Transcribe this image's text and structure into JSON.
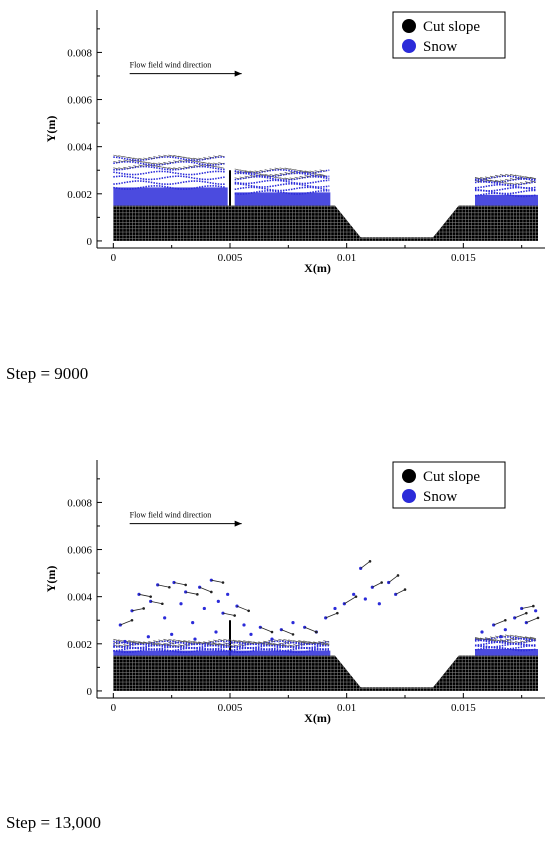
{
  "charts": [
    {
      "type": "scatter",
      "caption": "Step = 9000",
      "xlabel": "X(m)",
      "ylabel": "Y(m)",
      "xlim": [
        -0.0007,
        0.0185
      ],
      "ylim": [
        -0.0003,
        0.0098
      ],
      "x_ticks": [
        0,
        0.005,
        0.01,
        0.015
      ],
      "x_tick_labels": [
        "0",
        "0.005",
        "0.01",
        "0.015"
      ],
      "y_ticks": [
        0,
        0.002,
        0.004,
        0.006,
        0.008
      ],
      "y_tick_labels": [
        "0",
        "0.002",
        "0.004",
        "0.006",
        "0.008"
      ],
      "annotation": "Flow field wind direction",
      "legend": [
        {
          "label": "Cut slope",
          "color": "#000000"
        },
        {
          "label": "Snow",
          "color": "#2b2bd9"
        }
      ],
      "legend_position": "top-right",
      "slope_profile": {
        "x": [
          0,
          0.0095,
          0.0106,
          0.0137,
          0.0148,
          0.0182
        ],
        "y": [
          0.0015,
          0.0015,
          0.00015,
          0.00015,
          0.0015,
          0.0015
        ]
      },
      "wall": {
        "x": 0.005,
        "y0": 0.0015,
        "y1": 0.003
      },
      "snow_layers": [
        {
          "x0": 0.0,
          "x1": 0.0049,
          "base": 0.0015,
          "top": 0.0037
        },
        {
          "x0": 0.0052,
          "x1": 0.0093,
          "base": 0.0015,
          "top": 0.0031
        },
        {
          "x0": 0.0155,
          "x1": 0.0182,
          "base": 0.0015,
          "top": 0.0028
        }
      ],
      "snow_particles": [],
      "vectors": []
    },
    {
      "type": "scatter",
      "caption": "Step = 13,000",
      "xlabel": "X(m)",
      "ylabel": "Y(m)",
      "xlim": [
        -0.0007,
        0.0185
      ],
      "ylim": [
        -0.0003,
        0.0098
      ],
      "x_ticks": [
        0,
        0.005,
        0.01,
        0.015
      ],
      "x_tick_labels": [
        "0",
        "0.005",
        "0.01",
        "0.015"
      ],
      "y_ticks": [
        0,
        0.002,
        0.004,
        0.006,
        0.008
      ],
      "y_tick_labels": [
        "0",
        "0.002",
        "0.004",
        "0.006",
        "0.008"
      ],
      "annotation": "Flow field wind direction",
      "legend": [
        {
          "label": "Cut slope",
          "color": "#000000"
        },
        {
          "label": "Snow",
          "color": "#2b2bd9"
        }
      ],
      "legend_position": "top-right",
      "slope_profile": {
        "x": [
          0,
          0.0095,
          0.0106,
          0.0137,
          0.0148,
          0.0182
        ],
        "y": [
          0.0015,
          0.0015,
          0.00015,
          0.00015,
          0.0015,
          0.0015
        ]
      },
      "wall": {
        "x": 0.005,
        "y0": 0.0015,
        "y1": 0.003
      },
      "snow_layers": [
        {
          "x0": 0.0,
          "x1": 0.0093,
          "base": 0.0015,
          "top": 0.0021
        },
        {
          "x0": 0.0155,
          "x1": 0.0182,
          "base": 0.0015,
          "top": 0.0023
        }
      ],
      "snow_particles": [
        [
          0.0003,
          0.0028
        ],
        [
          0.0008,
          0.0034
        ],
        [
          0.0011,
          0.0041
        ],
        [
          0.0016,
          0.0038
        ],
        [
          0.0019,
          0.0045
        ],
        [
          0.0022,
          0.0031
        ],
        [
          0.0026,
          0.0046
        ],
        [
          0.0029,
          0.0037
        ],
        [
          0.0031,
          0.0042
        ],
        [
          0.0034,
          0.0029
        ],
        [
          0.0037,
          0.0044
        ],
        [
          0.0039,
          0.0035
        ],
        [
          0.0042,
          0.0047
        ],
        [
          0.0045,
          0.0038
        ],
        [
          0.0047,
          0.0033
        ],
        [
          0.0049,
          0.0041
        ],
        [
          0.0053,
          0.0036
        ],
        [
          0.0056,
          0.0028
        ],
        [
          0.0059,
          0.0024
        ],
        [
          0.0063,
          0.0027
        ],
        [
          0.0068,
          0.0022
        ],
        [
          0.0072,
          0.0026
        ],
        [
          0.0077,
          0.0029
        ],
        [
          0.0082,
          0.0027
        ],
        [
          0.0087,
          0.0025
        ],
        [
          0.0091,
          0.0031
        ],
        [
          0.0095,
          0.0035
        ],
        [
          0.0099,
          0.0037
        ],
        [
          0.0103,
          0.0041
        ],
        [
          0.0106,
          0.0052
        ],
        [
          0.0108,
          0.0039
        ],
        [
          0.0111,
          0.0044
        ],
        [
          0.0114,
          0.0037
        ],
        [
          0.0118,
          0.0046
        ],
        [
          0.0121,
          0.0041
        ],
        [
          0.0025,
          0.0024
        ],
        [
          0.0035,
          0.0022
        ],
        [
          0.0015,
          0.0023
        ],
        [
          0.0005,
          0.0021
        ],
        [
          0.0044,
          0.0025
        ],
        [
          0.0158,
          0.0025
        ],
        [
          0.0163,
          0.0028
        ],
        [
          0.0168,
          0.0026
        ],
        [
          0.0172,
          0.0031
        ],
        [
          0.0177,
          0.0029
        ],
        [
          0.0181,
          0.0034
        ],
        [
          0.0175,
          0.0035
        ],
        [
          0.0166,
          0.0023
        ]
      ],
      "vectors": [
        [
          0.0003,
          0.0028,
          0.0008,
          0.003
        ],
        [
          0.0008,
          0.0034,
          0.0013,
          0.0035
        ],
        [
          0.0011,
          0.0041,
          0.0016,
          0.004
        ],
        [
          0.0016,
          0.0038,
          0.0021,
          0.0037
        ],
        [
          0.0019,
          0.0045,
          0.0024,
          0.0044
        ],
        [
          0.0026,
          0.0046,
          0.0031,
          0.0045
        ],
        [
          0.0031,
          0.0042,
          0.0036,
          0.0041
        ],
        [
          0.0037,
          0.0044,
          0.0042,
          0.0042
        ],
        [
          0.0042,
          0.0047,
          0.0047,
          0.0046
        ],
        [
          0.0047,
          0.0033,
          0.0052,
          0.0032
        ],
        [
          0.0053,
          0.0036,
          0.0058,
          0.0034
        ],
        [
          0.0063,
          0.0027,
          0.0068,
          0.0025
        ],
        [
          0.0072,
          0.0026,
          0.0077,
          0.0024
        ],
        [
          0.0082,
          0.0027,
          0.0087,
          0.0025
        ],
        [
          0.0091,
          0.0031,
          0.0096,
          0.0033
        ],
        [
          0.0099,
          0.0037,
          0.0104,
          0.004
        ],
        [
          0.0106,
          0.0052,
          0.011,
          0.0055
        ],
        [
          0.0111,
          0.0044,
          0.0115,
          0.0046
        ],
        [
          0.0118,
          0.0046,
          0.0122,
          0.0049
        ],
        [
          0.0121,
          0.0041,
          0.0125,
          0.0043
        ],
        [
          0.0163,
          0.0028,
          0.0168,
          0.003
        ],
        [
          0.0172,
          0.0031,
          0.0177,
          0.0033
        ],
        [
          0.0177,
          0.0029,
          0.0182,
          0.0031
        ],
        [
          0.0175,
          0.0035,
          0.018,
          0.0036
        ]
      ]
    }
  ]
}
